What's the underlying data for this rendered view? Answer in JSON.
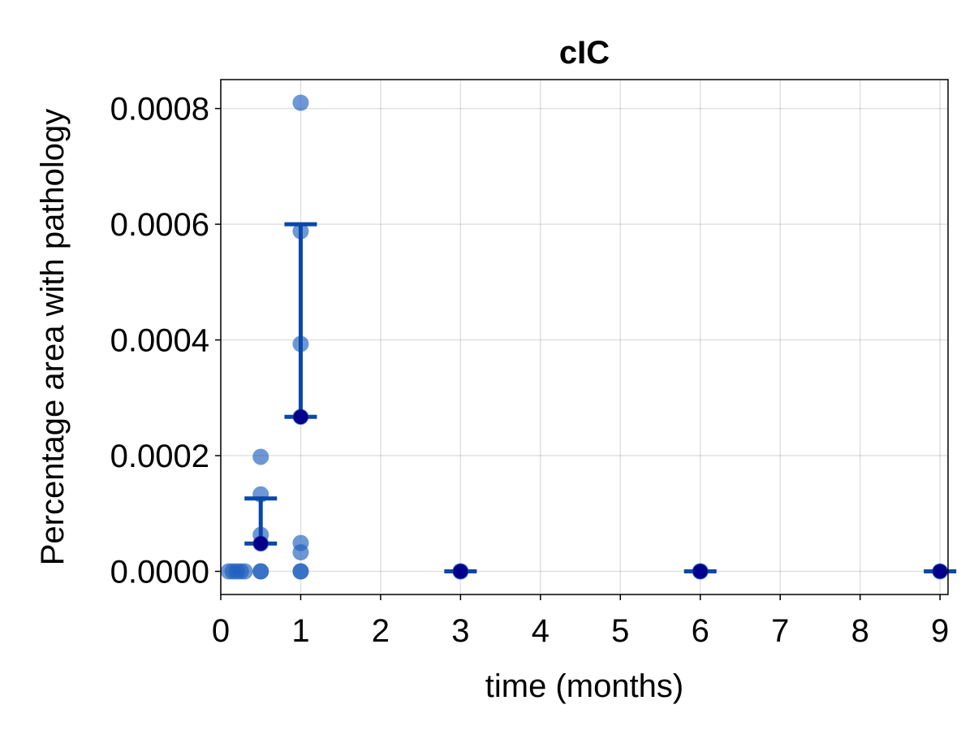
{
  "chart_data": {
    "type": "scatter",
    "title": "cIC",
    "xlabel": "time (months)",
    "ylabel": "Percentage area with pathology",
    "xlim": [
      0,
      9.1
    ],
    "ylim": [
      -4e-05,
      0.00085
    ],
    "x_ticks": [
      0,
      1,
      2,
      3,
      4,
      5,
      6,
      7,
      8,
      9
    ],
    "x_tick_labels": [
      "0",
      "1",
      "2",
      "3",
      "4",
      "5",
      "6",
      "7",
      "8",
      "9"
    ],
    "y_ticks": [
      0,
      0.0002,
      0.0004,
      0.0006,
      0.0008
    ],
    "y_tick_labels": [
      "0.0000",
      "0.0002",
      "0.0004",
      "0.0006",
      "0.0008"
    ],
    "grid": true,
    "legend": "none",
    "colors": {
      "points": "#1f5fbf",
      "points_opacity": 0.65,
      "error_bars": "#0a47a9",
      "mean_marker": "#00008b"
    },
    "series": [
      {
        "kind": "individual_points",
        "points": [
          {
            "x": 0.1,
            "y": 0
          },
          {
            "x": 0.15,
            "y": 0
          },
          {
            "x": 0.2,
            "y": 0
          },
          {
            "x": 0.25,
            "y": 0
          },
          {
            "x": 0.3,
            "y": 0
          },
          {
            "x": 0.5,
            "y": 0
          },
          {
            "x": 0.5,
            "y": 0
          },
          {
            "x": 0.5,
            "y": 4.8e-05
          },
          {
            "x": 0.5,
            "y": 6.3e-05
          },
          {
            "x": 0.5,
            "y": 0.000133
          },
          {
            "x": 0.5,
            "y": 0.000198
          },
          {
            "x": 1,
            "y": 0
          },
          {
            "x": 1,
            "y": 0
          },
          {
            "x": 1,
            "y": 3.3e-05
          },
          {
            "x": 1,
            "y": 4.9e-05
          },
          {
            "x": 1,
            "y": 0.000267
          },
          {
            "x": 1,
            "y": 0.000393
          },
          {
            "x": 1,
            "y": 0.000588
          },
          {
            "x": 1,
            "y": 0.00081
          },
          {
            "x": 3,
            "y": 0
          },
          {
            "x": 3,
            "y": 0
          },
          {
            "x": 6,
            "y": 0
          },
          {
            "x": 6,
            "y": 0
          },
          {
            "x": 9,
            "y": 0
          }
        ]
      },
      {
        "kind": "mean_with_error",
        "points": [
          {
            "x": 0.5,
            "y": 4.8e-05,
            "low": 4.8e-05,
            "high": 0.000126
          },
          {
            "x": 1,
            "y": 0.000267,
            "low": 0.000267,
            "high": 0.0006
          },
          {
            "x": 3,
            "y": 0,
            "low": 0,
            "high": 0
          },
          {
            "x": 6,
            "y": 0,
            "low": 0,
            "high": 0
          },
          {
            "x": 9,
            "y": 0,
            "low": 0,
            "high": 0
          }
        ]
      }
    ]
  }
}
